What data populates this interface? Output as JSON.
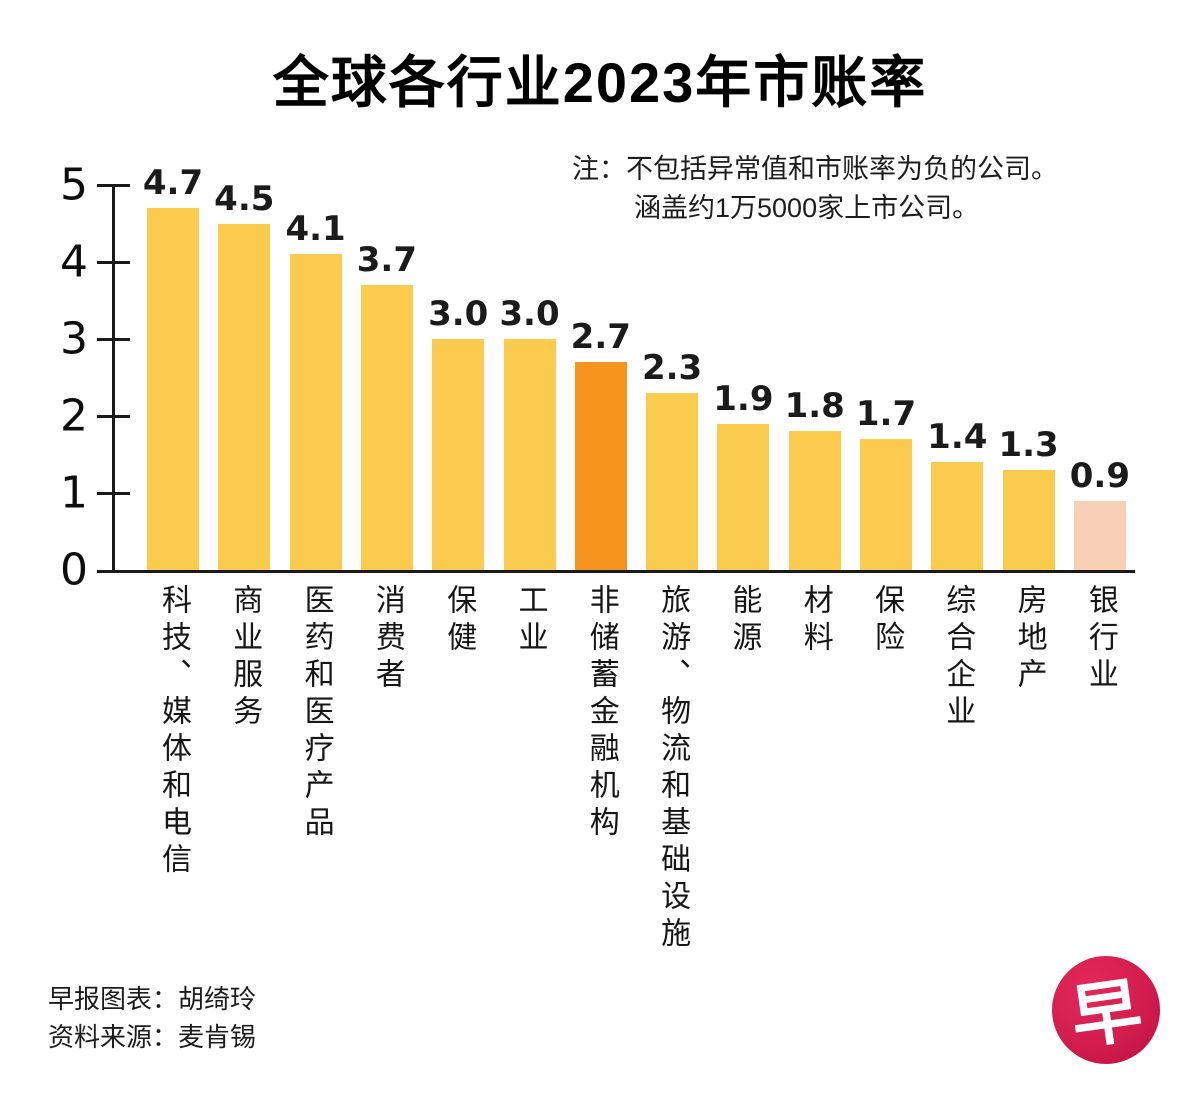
{
  "title": "全球各行业2023年市账率",
  "note": {
    "prefix_line1": "注：不包括异常值和市账率为负的公司。",
    "line2": "涵盖约1万5000家上市公司。"
  },
  "credits": {
    "line1": "早报图表：胡绮玲",
    "line2": "资料来源：麦肯锡"
  },
  "logo": {
    "glyph": "早",
    "name": "zaobao-logo"
  },
  "colors": {
    "bar_default": "#FBCB4D",
    "bar_highlight": "#F6941E",
    "bar_muted": "#F8D0B5",
    "axis": "#1a1a1a"
  },
  "chart_data": {
    "type": "bar",
    "title": "全球各行业2023年市账率",
    "xlabel": "",
    "ylabel": "",
    "ylim": [
      0,
      5
    ],
    "yticks": [
      0,
      1,
      2,
      3,
      4,
      5
    ],
    "grid": false,
    "legend": false,
    "categories": [
      "科技、媒体和电信",
      "商业服务",
      "医药和医疗产品",
      "消费者",
      "保健",
      "工业",
      "非储蓄金融机构",
      "旅游、物流和基础设施",
      "能源",
      "材料",
      "保险",
      "综合企业",
      "房地产",
      "银行业"
    ],
    "values": [
      4.7,
      4.5,
      4.1,
      3.7,
      3.0,
      3.0,
      2.7,
      2.3,
      1.9,
      1.8,
      1.7,
      1.4,
      1.3,
      0.9
    ],
    "value_labels": [
      "4.7",
      "4.5",
      "4.1",
      "3.7",
      "3.0",
      "3.0",
      "2.7",
      "2.3",
      "1.9",
      "1.8",
      "1.7",
      "1.4",
      "1.3",
      "0.9"
    ],
    "bar_color_keys": [
      "default",
      "default",
      "default",
      "default",
      "default",
      "default",
      "highlight",
      "default",
      "default",
      "default",
      "default",
      "default",
      "default",
      "muted"
    ]
  }
}
